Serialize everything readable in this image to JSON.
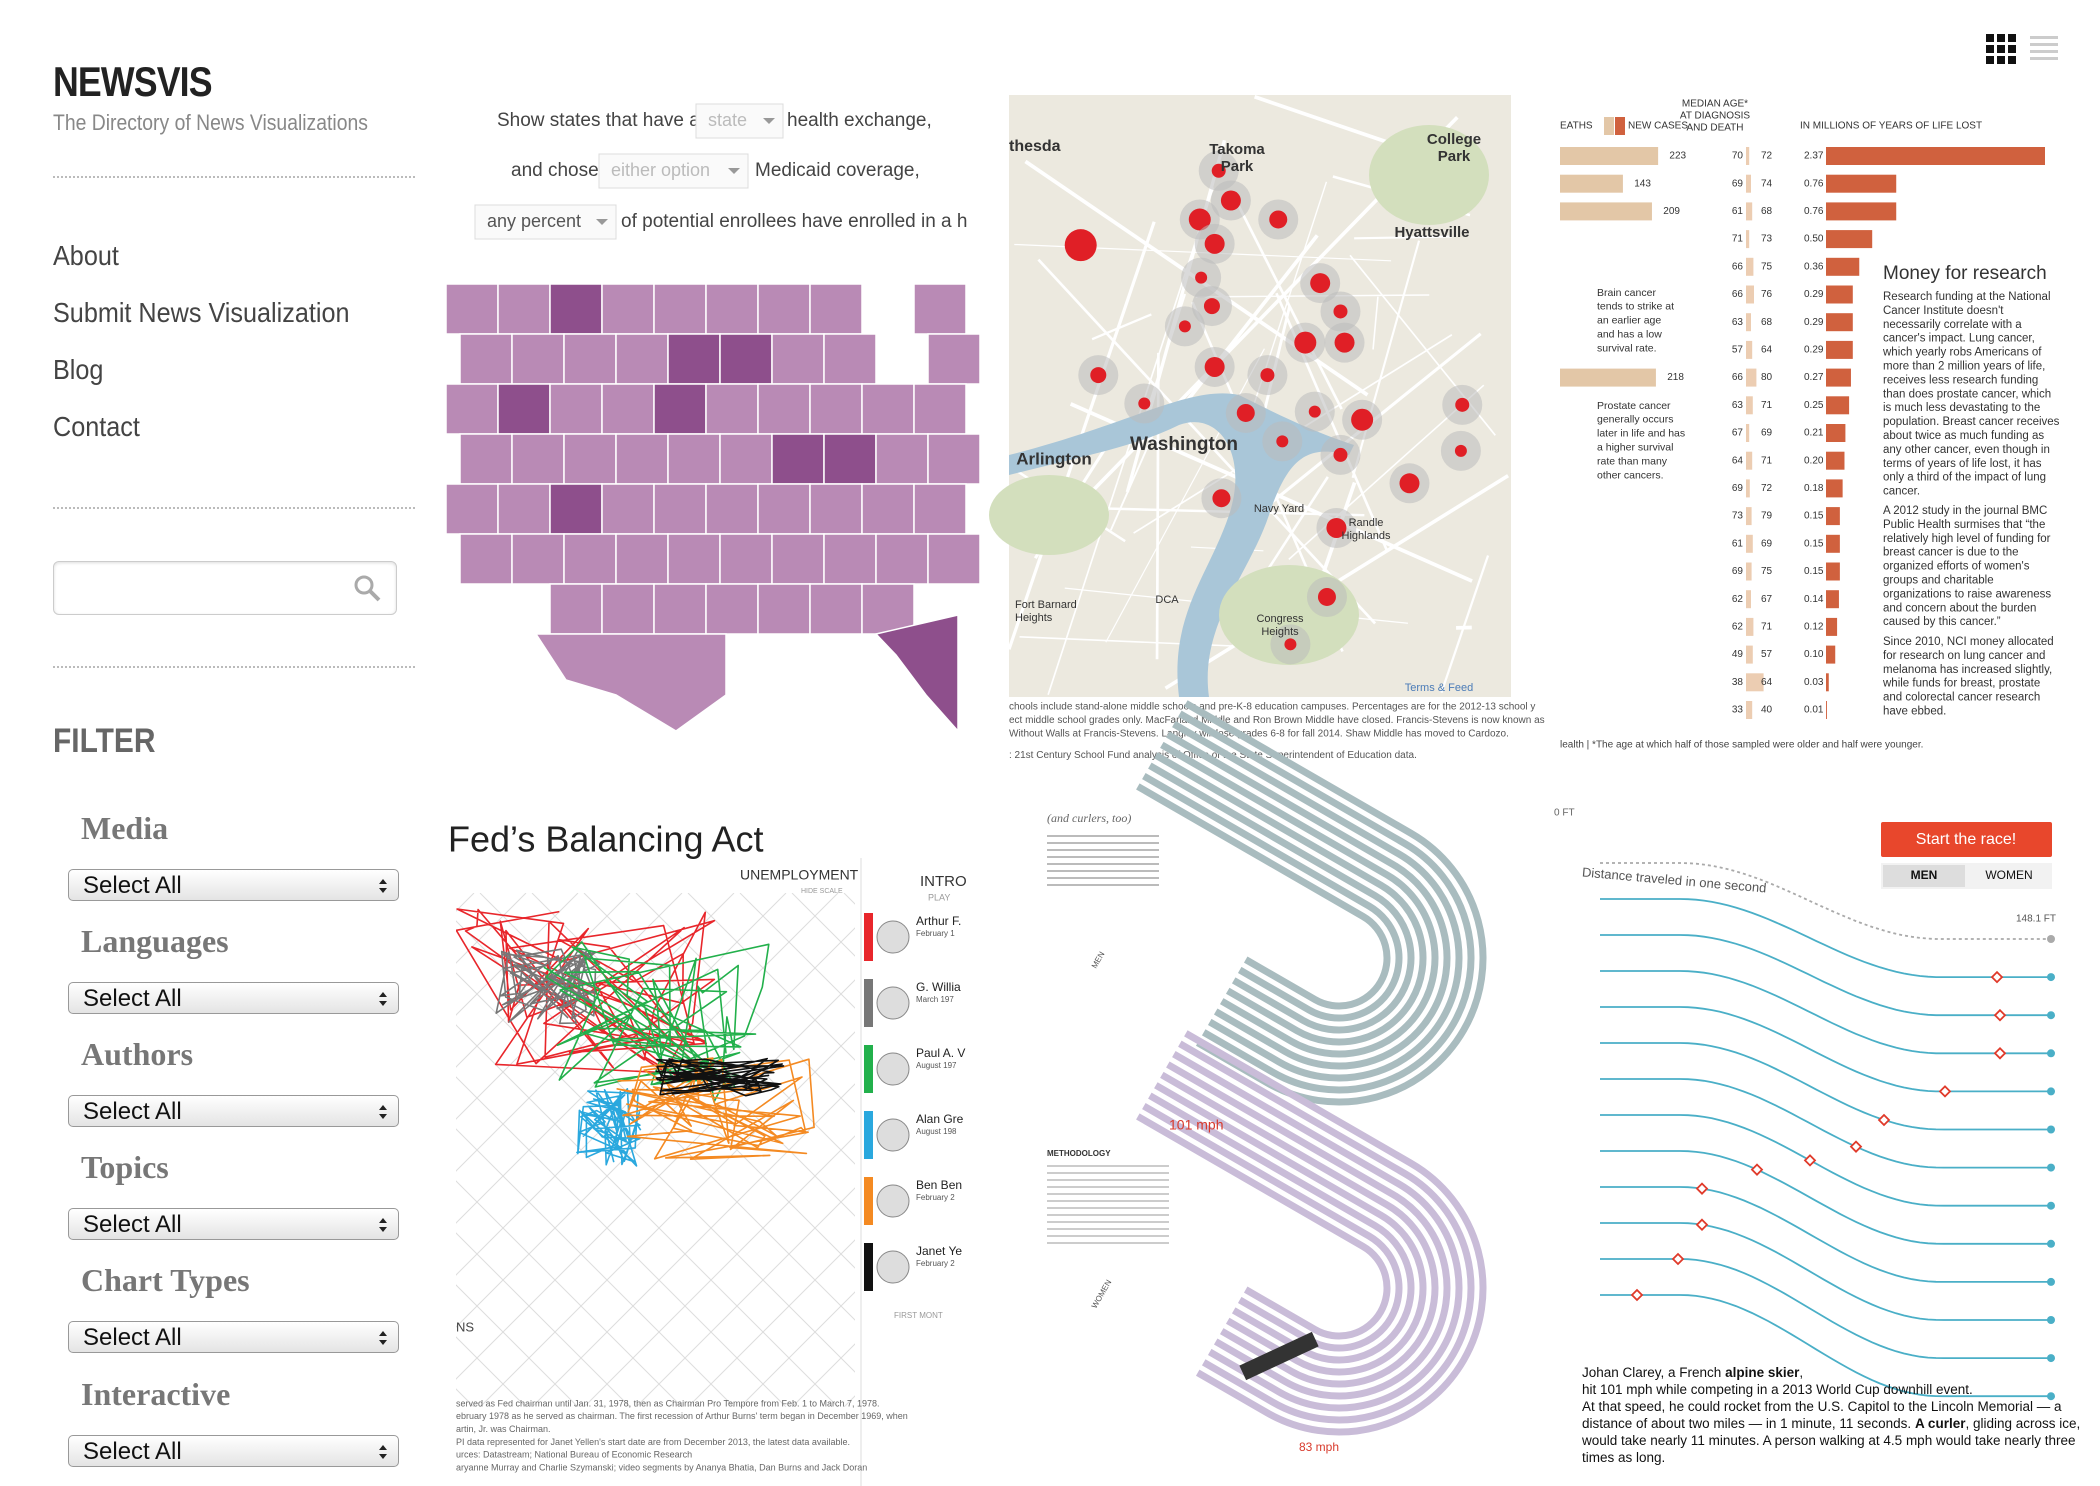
{
  "header": {
    "title": "NEWSVIS",
    "subtitle": "The Directory of News Visualizations"
  },
  "nav": [
    "About",
    "Submit News Visualization",
    "Blog",
    "Contact"
  ],
  "filter": {
    "title": "FILTER",
    "groups": [
      {
        "label": "Media",
        "value": "Select All"
      },
      {
        "label": "Languages",
        "value": "Select All"
      },
      {
        "label": "Authors",
        "value": "Select All"
      },
      {
        "label": "Topics",
        "value": "Select All"
      },
      {
        "label": "Chart Types",
        "value": "Select All"
      },
      {
        "label": "Interactive",
        "value": "Select All"
      }
    ]
  },
  "thumbnails": [
    {
      "type": "choropleth",
      "line1": "Show states that have a",
      "select1": "state",
      "after1": "health exchange,",
      "line2": "and chose",
      "select2": "either option",
      "after2": "Medicaid coverage,",
      "select3": "any percent",
      "after3": "of potential enrollees have enrolled in a h"
    },
    {
      "type": "dot-map",
      "labels": [
        "thesda",
        "Takoma",
        "Park",
        "College",
        "Park",
        "Hyattsville",
        "Washington",
        "Arlington",
        "Navy Yard",
        "DCA",
        "Congress",
        "Heights",
        "Randle",
        "Highlands",
        "Fort Barnard",
        "Heights",
        "Terms & Feed"
      ],
      "caption": [
        "chools include stand-alone middle schools and pre-K-8 education campuses. Percentages are for the 2012-13 school y",
        "ect middle school grades only. MacFarland Middle and Ron Brown Middle have closed. Francis-Stevens is now known as",
        "Without Walls at Francis-Stevens. Langley will lose grades 6-8 for fall 2014. Shaw Middle has moved to Cardozo.",
        ": 21st Century School Fund analysis of Office of the State Superintendent of Education data."
      ]
    },
    {
      "type": "bar",
      "headers": [
        "EATHS",
        "NEW CASES",
        "MEDIAN AGE*",
        "AT DIAGNOSIS",
        "AND DEATH",
        "IN MILLIONS OF YEARS OF LIFE LOST"
      ],
      "new_cases": [
        223,
        143,
        209,
        null,
        null,
        null,
        null,
        null,
        218,
        null,
        null,
        null,
        null,
        null,
        null,
        null,
        null,
        null,
        null,
        null,
        null
      ],
      "ages": [
        [
          70,
          72
        ],
        [
          69,
          74
        ],
        [
          61,
          68
        ],
        [
          71,
          73
        ],
        [
          66,
          75
        ],
        [
          66,
          76
        ],
        [
          63,
          68
        ],
        [
          57,
          64
        ],
        [
          66,
          80
        ],
        [
          63,
          71
        ],
        [
          67,
          69
        ],
        [
          64,
          71
        ],
        [
          69,
          72
        ],
        [
          73,
          79
        ],
        [
          61,
          69
        ],
        [
          69,
          75
        ],
        [
          62,
          67
        ],
        [
          62,
          71
        ],
        [
          49,
          57
        ],
        [
          38,
          64
        ],
        [
          33,
          40
        ]
      ],
      "values": [
        2.37,
        0.76,
        0.76,
        0.5,
        0.36,
        0.29,
        0.29,
        0.29,
        0.27,
        0.25,
        0.21,
        0.2,
        0.18,
        0.15,
        0.15,
        0.15,
        0.14,
        0.12,
        0.1,
        0.03,
        0.01
      ],
      "value_labels": [
        "2.37",
        "0.76",
        "0.76",
        "0.50",
        "0.36",
        "0.29",
        "0.29",
        "0.29",
        "0.27",
        "0.25",
        "0.21",
        "0.20",
        "0.18",
        "0.15",
        "0.15",
        "0.15",
        "0.14",
        "0.12",
        "0.10",
        "0.03",
        "0.01"
      ],
      "color": "#d0613e",
      "cases_color": "#e3c7a7",
      "note1": [
        "Brain cancer",
        "tends to strike at",
        "an earlier age",
        "and has a low",
        "survival rate."
      ],
      "note2": [
        "Prostate cancer",
        "generally occurs",
        "later in life and has",
        "a higher survival",
        "rate than many",
        "other cancers."
      ],
      "side_title": "Money for research",
      "paragraphs": [
        [
          "Research funding at the National",
          "Cancer Institute doesn't",
          "necessarily correlate with a",
          "cancer's impact. Lung cancer,",
          "which yearly robs Americans of",
          "more than 2 million years of life,",
          "receives less research funding",
          "than does prostate cancer, which",
          "is much less devastating to the",
          "population. Breast cancer receives",
          "about twice as much funding as",
          "any other cancer, even though in",
          "terms of years of life lost, it has",
          "only a third of the impact of lung",
          "cancer."
        ],
        [
          "A 2012 study in the journal BMC",
          "Public Health surmises that “the",
          "relatively high level of funding for",
          "breast cancer is due to the",
          "organized efforts of women's",
          "groups and charitable",
          "organizations to raise awareness",
          "and concern about the burden",
          "caused by this cancer.”"
        ],
        [
          "Since 2010, NCI money allocated",
          "for research on lung cancer and",
          "melanoma has increased slightly,",
          "while funds for breast, prostate",
          "and colorectal cancer research",
          "have ebbed."
        ]
      ],
      "footer": "lealth | *The age at which half of those sampled were older and half were younger."
    },
    {
      "type": "connected-scatter",
      "title": "Fed’s Balancing Act",
      "axis": "UNEMPLOYMENT",
      "hide": "HIDE SCALE",
      "intro": "INTRO",
      "play": "PLAY",
      "people": [
        {
          "name": "Arthur F.",
          "date": "February 1",
          "color": "#e8262b"
        },
        {
          "name": "G. Willia",
          "date": "March 197",
          "color": "#777777"
        },
        {
          "name": "Paul A. V",
          "date": "August 197",
          "color": "#22b04b"
        },
        {
          "name": "Alan Gre",
          "date": "August 198",
          "color": "#2aa8de"
        },
        {
          "name": "Ben Ben",
          "date": "February 2",
          "color": "#f48a22"
        },
        {
          "name": "Janet Ye",
          "date": "February 2",
          "color": "#111111"
        }
      ],
      "first": "FIRST MONT",
      "corner": "NS",
      "caption": [
        "served as Fed chairman until Jan. 31, 1978, then as Chairman Pro Tempore from Feb. 1 to March 7, 1978.",
        "ebruary 1978 as he served as chairman. The first recession of Arthur Burns' term began in December 1969, when",
        "artin, Jr. was Chairman.",
        "PI data represented for Janet Yellen's start date are from December 2013, the latest data available.",
        "urces: Datastream; National Bureau of Economic Research",
        "aryanne Murray and Charlie Szymanski; video segments by Ananya Bhatia, Dan Burns and Jack Doran"
      ]
    },
    {
      "type": "tracks",
      "subtitle": "(and curlers, too)",
      "speed_men": "101 mph",
      "speed_women": "83 mph",
      "method": "METHODOLOGY",
      "men": "MEN",
      "women": "WOMEN"
    },
    {
      "type": "race",
      "button": "Start the race!",
      "toggle": [
        "MEN",
        "WOMEN"
      ],
      "axis_top": "0 FT",
      "curve_label": "Distance traveled in one second",
      "end_label": "148.1 FT",
      "paragraph": [
        [
          {
            "text": "Johan Clarey, a French "
          },
          {
            "text": "alpine skier",
            "bold": true
          },
          {
            "text": ","
          }
        ],
        [
          {
            "text": "hit 101 mph while competing in a 2013 World Cup downhill event."
          }
        ],
        [
          {
            "text": "At that speed, he could rocket from the U.S. Capitol to the Lincoln Memorial — a"
          }
        ],
        [
          {
            "text": "distance of about two miles — in 1 minute, 11 seconds. "
          },
          {
            "text": "A curler",
            "bold": true
          },
          {
            "text": ", gliding across ice,"
          }
        ],
        [
          {
            "text": "would take nearly 11 minutes. A person walking at 4.5 mph would take nearly three"
          }
        ],
        [
          {
            "text": "times as long."
          }
        ]
      ]
    }
  ]
}
